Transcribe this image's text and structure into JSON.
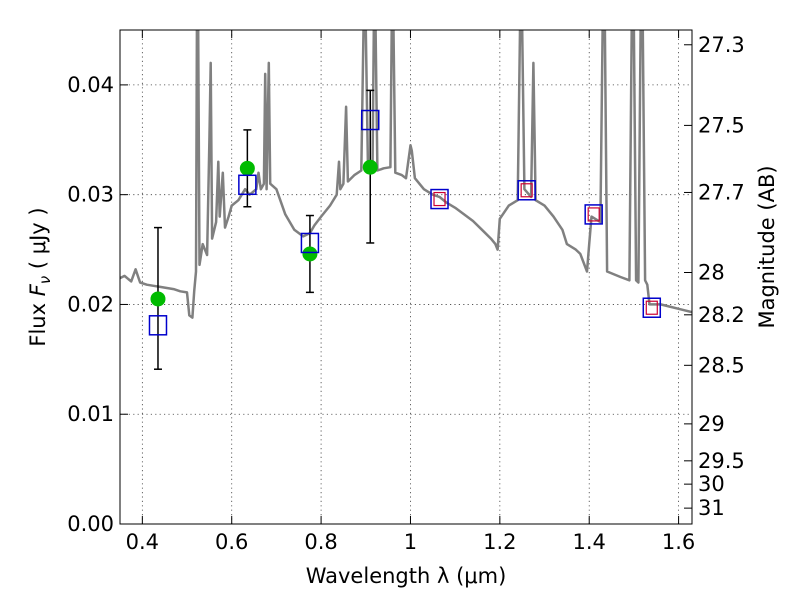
{
  "chart_data": {
    "type": "scatter",
    "xlabel": "Wavelength  λ (μm)",
    "ylabel_left": {
      "prefix": "Flux  ",
      "symbol": "F",
      "subscript": "ν",
      "suffix": "  ( μJy )"
    },
    "ylabel_right": "Magnitude (AB)",
    "xlim": [
      0.35,
      1.63
    ],
    "ylim": [
      0.0,
      0.045
    ],
    "x_ticks": [
      0.4,
      0.6,
      0.8,
      1.0,
      1.2,
      1.4,
      1.6
    ],
    "x_tick_labels": [
      "0.4",
      "0.6",
      "0.8",
      "1",
      "1.2",
      "1.4",
      "1.6"
    ],
    "y_ticks": [
      0.0,
      0.01,
      0.02,
      0.03,
      0.04
    ],
    "y_tick_labels": [
      "0.00",
      "0.01",
      "0.02",
      "0.03",
      "0.04"
    ],
    "magnitude_ticks": [
      27.3,
      27.5,
      27.7,
      28,
      28.2,
      28.5,
      29,
      29.5,
      30,
      31
    ],
    "magnitude_tick_labels": [
      "27.3",
      "27.5",
      "27.7",
      "28",
      "28.2",
      "28.5",
      "29",
      "29.5",
      "30",
      "31"
    ],
    "grid": true,
    "colors": {
      "model": "#808080",
      "observed": "#00bb00",
      "model_photometry": "#0000cc",
      "highlight": "#cc0033",
      "errorbar": "#000000"
    },
    "observed_points": [
      {
        "x": 0.435,
        "y": 0.0205,
        "yerr_low": 0.0064,
        "yerr_high": 0.0065
      },
      {
        "x": 0.635,
        "y": 0.0324,
        "yerr_low": 0.0035,
        "yerr_high": 0.0035
      },
      {
        "x": 0.775,
        "y": 0.0246,
        "yerr_low": 0.0035,
        "yerr_high": 0.0035
      },
      {
        "x": 0.91,
        "y": 0.0325,
        "yerr_low": 0.0069,
        "yerr_high": 0.007
      }
    ],
    "model_photometry": [
      {
        "x": 0.435,
        "y": 0.0181,
        "highlight": false
      },
      {
        "x": 0.635,
        "y": 0.0309,
        "highlight": false
      },
      {
        "x": 0.775,
        "y": 0.0256,
        "highlight": false
      },
      {
        "x": 0.91,
        "y": 0.0368,
        "highlight": false
      },
      {
        "x": 1.065,
        "y": 0.0296,
        "highlight": true
      },
      {
        "x": 1.26,
        "y": 0.0304,
        "highlight": true
      },
      {
        "x": 1.41,
        "y": 0.0282,
        "highlight": true
      },
      {
        "x": 1.54,
        "y": 0.0197,
        "highlight": true
      }
    ],
    "model_spectrum": {
      "name": "",
      "points": [
        [
          0.35,
          0.0224
        ],
        [
          0.36,
          0.0226
        ],
        [
          0.375,
          0.0221
        ],
        [
          0.385,
          0.0232
        ],
        [
          0.395,
          0.022
        ],
        [
          0.41,
          0.0218
        ],
        [
          0.425,
          0.0217
        ],
        [
          0.44,
          0.0216
        ],
        [
          0.455,
          0.0215
        ],
        [
          0.47,
          0.0214
        ],
        [
          0.485,
          0.0212
        ],
        [
          0.5,
          0.0211
        ],
        [
          0.505,
          0.019
        ],
        [
          0.512,
          0.0188
        ],
        [
          0.516,
          0.0212
        ],
        [
          0.52,
          0.023
        ],
        [
          0.522,
          0.045
        ],
        [
          0.525,
          0.045
        ],
        [
          0.528,
          0.0236
        ],
        [
          0.535,
          0.0255
        ],
        [
          0.545,
          0.0245
        ],
        [
          0.55,
          0.035
        ],
        [
          0.553,
          0.042
        ],
        [
          0.556,
          0.026
        ],
        [
          0.565,
          0.0275
        ],
        [
          0.57,
          0.033
        ],
        [
          0.573,
          0.028
        ],
        [
          0.58,
          0.032
        ],
        [
          0.585,
          0.027
        ],
        [
          0.593,
          0.028
        ],
        [
          0.6,
          0.029
        ],
        [
          0.615,
          0.0295
        ],
        [
          0.63,
          0.0305
        ],
        [
          0.64,
          0.03
        ],
        [
          0.655,
          0.0305
        ],
        [
          0.66,
          0.032
        ],
        [
          0.665,
          0.0305
        ],
        [
          0.672,
          0.031
        ],
        [
          0.675,
          0.041
        ],
        [
          0.678,
          0.0305
        ],
        [
          0.683,
          0.042
        ],
        [
          0.686,
          0.031
        ],
        [
          0.7,
          0.0305
        ],
        [
          0.72,
          0.0282
        ],
        [
          0.74,
          0.0268
        ],
        [
          0.76,
          0.0262
        ],
        [
          0.775,
          0.0265
        ],
        [
          0.785,
          0.0272
        ],
        [
          0.8,
          0.028
        ],
        [
          0.82,
          0.029
        ],
        [
          0.835,
          0.03
        ],
        [
          0.84,
          0.033
        ],
        [
          0.843,
          0.0305
        ],
        [
          0.85,
          0.031
        ],
        [
          0.856,
          0.038
        ],
        [
          0.86,
          0.0312
        ],
        [
          0.875,
          0.0318
        ],
        [
          0.89,
          0.0322
        ],
        [
          0.895,
          0.045
        ],
        [
          0.9,
          0.045
        ],
        [
          0.905,
          0.0322
        ],
        [
          0.915,
          0.0323
        ],
        [
          0.918,
          0.045
        ],
        [
          0.922,
          0.045
        ],
        [
          0.926,
          0.0322
        ],
        [
          0.94,
          0.0324
        ],
        [
          0.955,
          0.0325
        ],
        [
          0.958,
          0.045
        ],
        [
          0.962,
          0.045
        ],
        [
          0.966,
          0.032
        ],
        [
          0.98,
          0.0318
        ],
        [
          0.99,
          0.0315
        ],
        [
          1.0,
          0.0345
        ],
        [
          1.003,
          0.034
        ],
        [
          1.01,
          0.0315
        ],
        [
          1.03,
          0.0305
        ],
        [
          1.05,
          0.03
        ],
        [
          1.065,
          0.0298
        ],
        [
          1.08,
          0.0293
        ],
        [
          1.1,
          0.0288
        ],
        [
          1.12,
          0.0282
        ],
        [
          1.14,
          0.0276
        ],
        [
          1.16,
          0.0268
        ],
        [
          1.18,
          0.026
        ],
        [
          1.19,
          0.0255
        ],
        [
          1.195,
          0.025
        ],
        [
          1.2,
          0.0278
        ],
        [
          1.22,
          0.029
        ],
        [
          1.24,
          0.0295
        ],
        [
          1.245,
          0.045
        ],
        [
          1.25,
          0.045
        ],
        [
          1.255,
          0.0305
        ],
        [
          1.27,
          0.0298
        ],
        [
          1.275,
          0.042
        ],
        [
          1.28,
          0.0295
        ],
        [
          1.3,
          0.029
        ],
        [
          1.32,
          0.028
        ],
        [
          1.34,
          0.0268
        ],
        [
          1.35,
          0.0255
        ],
        [
          1.37,
          0.025
        ],
        [
          1.38,
          0.0246
        ],
        [
          1.395,
          0.023
        ],
        [
          1.4,
          0.0255
        ],
        [
          1.405,
          0.028
        ],
        [
          1.425,
          0.0275
        ],
        [
          1.43,
          0.045
        ],
        [
          1.435,
          0.045
        ],
        [
          1.44,
          0.023
        ],
        [
          1.47,
          0.0225
        ],
        [
          1.49,
          0.0222
        ],
        [
          1.495,
          0.045
        ],
        [
          1.5,
          0.045
        ],
        [
          1.505,
          0.0222
        ],
        [
          1.51,
          0.022
        ],
        [
          1.515,
          0.045
        ],
        [
          1.52,
          0.045
        ],
        [
          1.525,
          0.0222
        ],
        [
          1.53,
          0.0218
        ],
        [
          1.535,
          0.02
        ],
        [
          1.54,
          0.02
        ],
        [
          1.56,
          0.02
        ],
        [
          1.58,
          0.0198
        ],
        [
          1.6,
          0.0196
        ],
        [
          1.63,
          0.0193
        ]
      ]
    }
  }
}
